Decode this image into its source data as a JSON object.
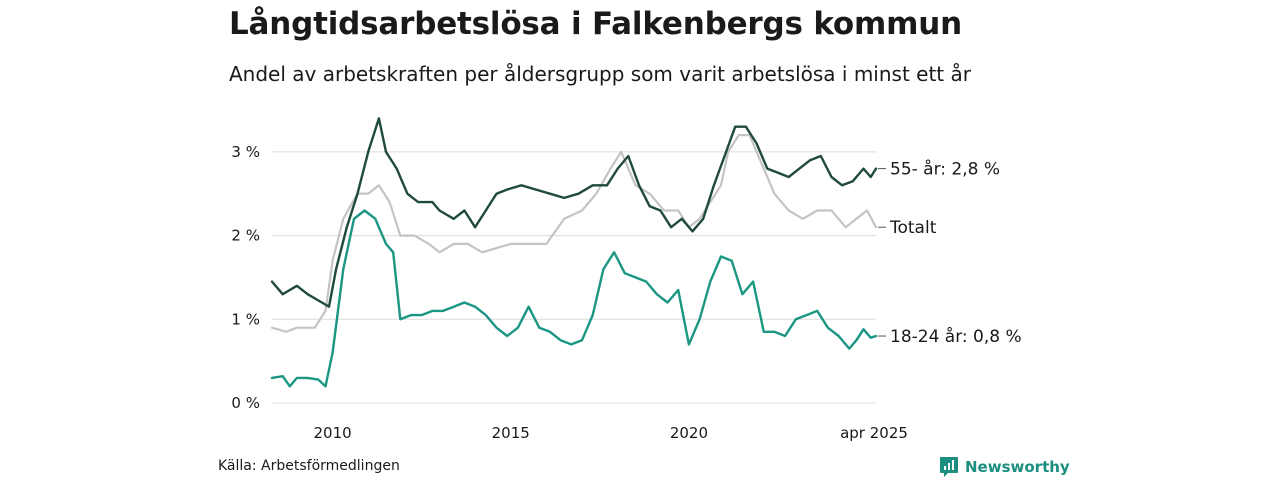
{
  "title": "Långtidsarbetslösa i Falkenbergs kommun",
  "subtitle": "Andel av arbetskraften per åldersgrupp som varit arbetslösa i minst ett år",
  "source": "Källa: Arbetsförmedlingen",
  "brand": "Newsworthy",
  "colors": {
    "senior": "#1f4a3c",
    "total": "#c4c4c8",
    "young": "#1a9682",
    "brand": "#1a8f7f",
    "grid": "#dcdcdc"
  },
  "chart_data": {
    "type": "line",
    "title": "Långtidsarbetslösa i Falkenbergs kommun",
    "subtitle": "Andel av arbetskraften per åldersgrupp som varit arbetslösa i minst ett år",
    "xlabel": "",
    "ylabel": "",
    "xlim": [
      2008.3,
      2025.25
    ],
    "ylim": [
      0,
      3.5
    ],
    "x_ticks": [
      {
        "value": 2010,
        "label": "2010"
      },
      {
        "value": 2015,
        "label": "2015"
      },
      {
        "value": 2020,
        "label": "2020"
      },
      {
        "value": 2025.25,
        "label": "apr 2025"
      }
    ],
    "y_ticks": [
      {
        "value": 0,
        "label": "0 %"
      },
      {
        "value": 1,
        "label": "1 %"
      },
      {
        "value": 2,
        "label": "2 %"
      },
      {
        "value": 3,
        "label": "3 %"
      }
    ],
    "grid": true,
    "series": [
      {
        "key": "total",
        "end_label": "Totalt",
        "x": [
          2008.3,
          2008.7,
          2009.0,
          2009.5,
          2009.8,
          2010.0,
          2010.3,
          2010.7,
          2011.0,
          2011.3,
          2011.6,
          2011.9,
          2012.3,
          2012.7,
          2013.0,
          2013.4,
          2013.8,
          2014.2,
          2014.6,
          2015.0,
          2015.5,
          2016.0,
          2016.5,
          2017.0,
          2017.4,
          2017.8,
          2018.1,
          2018.5,
          2018.9,
          2019.3,
          2019.7,
          2020.0,
          2020.3,
          2020.6,
          2020.9,
          2021.1,
          2021.4,
          2021.7,
          2022.0,
          2022.4,
          2022.8,
          2023.2,
          2023.6,
          2024.0,
          2024.4,
          2024.7,
          2025.0,
          2025.25
        ],
        "y": [
          0.9,
          0.85,
          0.9,
          0.9,
          1.1,
          1.7,
          2.2,
          2.5,
          2.5,
          2.6,
          2.4,
          2.0,
          2.0,
          1.9,
          1.8,
          1.9,
          1.9,
          1.8,
          1.85,
          1.9,
          1.9,
          1.9,
          2.2,
          2.3,
          2.5,
          2.8,
          3.0,
          2.6,
          2.5,
          2.3,
          2.3,
          2.1,
          2.2,
          2.4,
          2.6,
          3.0,
          3.2,
          3.2,
          2.9,
          2.5,
          2.3,
          2.2,
          2.3,
          2.3,
          2.1,
          2.2,
          2.3,
          2.1
        ]
      },
      {
        "key": "senior",
        "end_label": "55- år: 2,8 %",
        "x": [
          2008.3,
          2008.6,
          2008.8,
          2009.0,
          2009.3,
          2009.7,
          2009.9,
          2010.1,
          2010.4,
          2010.7,
          2011.0,
          2011.3,
          2011.5,
          2011.8,
          2012.1,
          2012.4,
          2012.8,
          2013.0,
          2013.4,
          2013.7,
          2014.0,
          2014.3,
          2014.6,
          2014.9,
          2015.3,
          2015.7,
          2016.1,
          2016.5,
          2016.9,
          2017.3,
          2017.7,
          2018.0,
          2018.3,
          2018.6,
          2018.9,
          2019.2,
          2019.5,
          2019.8,
          2020.1,
          2020.4,
          2020.7,
          2021.0,
          2021.3,
          2021.6,
          2021.9,
          2022.2,
          2022.5,
          2022.8,
          2023.1,
          2023.4,
          2023.7,
          2024.0,
          2024.3,
          2024.6,
          2024.9,
          2025.1,
          2025.25
        ],
        "y": [
          1.45,
          1.3,
          1.35,
          1.4,
          1.3,
          1.2,
          1.15,
          1.6,
          2.1,
          2.5,
          3.0,
          3.4,
          3.0,
          2.8,
          2.5,
          2.4,
          2.4,
          2.3,
          2.2,
          2.3,
          2.1,
          2.3,
          2.5,
          2.55,
          2.6,
          2.55,
          2.5,
          2.45,
          2.5,
          2.6,
          2.6,
          2.8,
          2.95,
          2.6,
          2.35,
          2.3,
          2.1,
          2.2,
          2.05,
          2.2,
          2.6,
          2.95,
          3.3,
          3.3,
          3.1,
          2.8,
          2.75,
          2.7,
          2.8,
          2.9,
          2.95,
          2.7,
          2.6,
          2.65,
          2.8,
          2.7,
          2.8
        ]
      },
      {
        "key": "young",
        "end_label": "18-24 år: 0,8 %",
        "x": [
          2008.3,
          2008.6,
          2008.8,
          2009.0,
          2009.3,
          2009.6,
          2009.8,
          2010.0,
          2010.3,
          2010.6,
          2010.9,
          2011.2,
          2011.5,
          2011.7,
          2011.9,
          2012.2,
          2012.5,
          2012.8,
          2013.1,
          2013.4,
          2013.7,
          2014.0,
          2014.3,
          2014.6,
          2014.9,
          2015.2,
          2015.5,
          2015.8,
          2016.1,
          2016.4,
          2016.7,
          2017.0,
          2017.3,
          2017.6,
          2017.9,
          2018.2,
          2018.5,
          2018.8,
          2019.1,
          2019.4,
          2019.7,
          2020.0,
          2020.3,
          2020.6,
          2020.9,
          2021.2,
          2021.5,
          2021.8,
          2022.1,
          2022.4,
          2022.7,
          2023.0,
          2023.3,
          2023.6,
          2023.9,
          2024.2,
          2024.5,
          2024.7,
          2024.9,
          2025.1,
          2025.25
        ],
        "y": [
          0.3,
          0.32,
          0.2,
          0.3,
          0.3,
          0.28,
          0.2,
          0.6,
          1.6,
          2.2,
          2.3,
          2.2,
          1.9,
          1.8,
          1.0,
          1.05,
          1.05,
          1.1,
          1.1,
          1.15,
          1.2,
          1.15,
          1.05,
          0.9,
          0.8,
          0.9,
          1.15,
          0.9,
          0.85,
          0.75,
          0.7,
          0.75,
          1.05,
          1.6,
          1.8,
          1.55,
          1.5,
          1.45,
          1.3,
          1.2,
          1.35,
          0.7,
          1.0,
          1.45,
          1.75,
          1.7,
          1.3,
          1.45,
          0.85,
          0.85,
          0.8,
          1.0,
          1.05,
          1.1,
          0.9,
          0.8,
          0.65,
          0.75,
          0.88,
          0.78,
          0.8
        ]
      }
    ]
  }
}
